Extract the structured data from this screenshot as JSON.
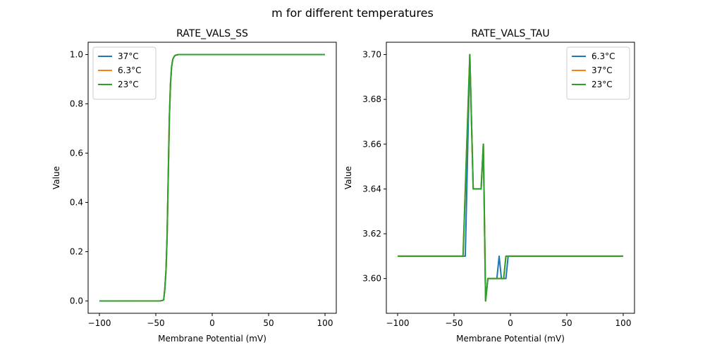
{
  "figure_title": "m for different temperatures",
  "colors": {
    "blue": "#1f77b4",
    "orange": "#ff7f0e",
    "green": "#2ca02c"
  },
  "chart_data": [
    {
      "type": "line",
      "title": "RATE_VALS_SS",
      "xlabel": "Membrane Potential (mV)",
      "ylabel": "Value",
      "xlim": [
        -110,
        110
      ],
      "ylim": [
        -0.05,
        1.05
      ],
      "xticks": [
        -100,
        -50,
        0,
        50,
        100
      ],
      "xtick_labels": [
        "−100",
        "−50",
        "0",
        "50",
        "100"
      ],
      "yticks": [
        0,
        0.2,
        0.4,
        0.6,
        0.8,
        1.0
      ],
      "ytick_labels": [
        "0.0",
        "0.2",
        "0.4",
        "0.6",
        "0.8",
        "1.0"
      ],
      "legend": "top-left",
      "grid": false,
      "series": [
        {
          "name": "37°C",
          "color": "#1f77b4",
          "x": [
            -100,
            -46,
            -44,
            -43,
            -42,
            -41,
            -40,
            -39,
            -38,
            -37,
            -36,
            -35,
            -34,
            -33,
            -32,
            -31,
            -30,
            100
          ],
          "y": [
            0,
            0.0005,
            0.002,
            0.005,
            0.05,
            0.12,
            0.26,
            0.5,
            0.74,
            0.88,
            0.95,
            0.98,
            0.99,
            0.996,
            0.998,
            0.999,
            1,
            1
          ]
        },
        {
          "name": "6.3°C",
          "color": "#ff7f0e",
          "x": [
            -100,
            -46,
            -44,
            -43,
            -42,
            -41,
            -40,
            -39,
            -38,
            -37,
            -36,
            -35,
            -34,
            -33,
            -32,
            -31,
            -30,
            100
          ],
          "y": [
            0,
            0.0005,
            0.002,
            0.005,
            0.05,
            0.12,
            0.26,
            0.5,
            0.74,
            0.88,
            0.95,
            0.98,
            0.99,
            0.996,
            0.998,
            0.999,
            1,
            1
          ]
        },
        {
          "name": "23°C",
          "color": "#2ca02c",
          "x": [
            -100,
            -46,
            -44,
            -43,
            -42,
            -41,
            -40,
            -39,
            -38,
            -37,
            -36,
            -35,
            -34,
            -33,
            -32,
            -31,
            -30,
            100
          ],
          "y": [
            0,
            0.0005,
            0.002,
            0.005,
            0.05,
            0.12,
            0.26,
            0.5,
            0.74,
            0.88,
            0.95,
            0.98,
            0.99,
            0.996,
            0.998,
            0.999,
            1,
            1
          ]
        }
      ]
    },
    {
      "type": "line",
      "title": "RATE_VALS_TAU",
      "xlabel": "Membrane Potential (mV)",
      "ylabel": "Value",
      "xlim": [
        -110,
        110
      ],
      "ylim": [
        3.5845,
        3.7055
      ],
      "xticks": [
        -100,
        -50,
        0,
        50,
        100
      ],
      "xtick_labels": [
        "−100",
        "−50",
        "0",
        "50",
        "100"
      ],
      "yticks": [
        3.6,
        3.62,
        3.64,
        3.66,
        3.68,
        3.7
      ],
      "ytick_labels": [
        "3.60",
        "3.62",
        "3.64",
        "3.66",
        "3.68",
        "3.70"
      ],
      "legend": "top-right",
      "grid": false,
      "series": [
        {
          "name": "6.3°C",
          "color": "#1f77b4",
          "x": [
            -100,
            -40,
            -36,
            -33,
            -26,
            -24,
            -22,
            -20,
            -12,
            -10,
            -8,
            -4,
            -2,
            100
          ],
          "y": [
            3.61,
            3.61,
            3.7,
            3.64,
            3.64,
            3.66,
            3.59,
            3.6,
            3.6,
            3.61,
            3.6,
            3.6,
            3.61,
            3.61
          ]
        },
        {
          "name": "37°C",
          "color": "#ff7f0e",
          "x": [
            -100,
            -42,
            -36,
            -33,
            -26,
            -24,
            -22,
            -20,
            -6,
            -4,
            100
          ],
          "y": [
            3.61,
            3.61,
            3.7,
            3.64,
            3.64,
            3.66,
            3.59,
            3.6,
            3.6,
            3.61,
            3.61
          ]
        },
        {
          "name": "23°C",
          "color": "#2ca02c",
          "x": [
            -100,
            -42,
            -36,
            -33,
            -26,
            -24,
            -22,
            -20,
            -6,
            -4,
            100
          ],
          "y": [
            3.61,
            3.61,
            3.7,
            3.64,
            3.64,
            3.66,
            3.59,
            3.6,
            3.6,
            3.61,
            3.61
          ]
        }
      ]
    }
  ]
}
